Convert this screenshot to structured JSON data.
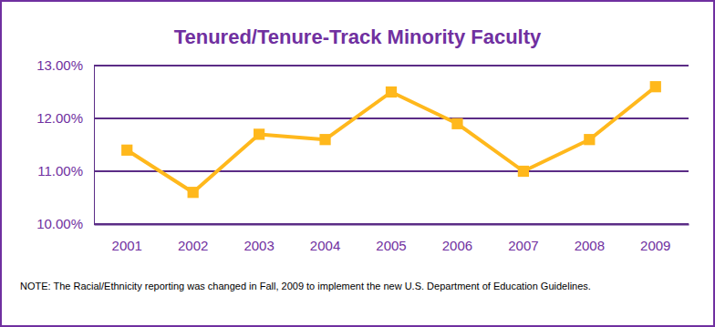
{
  "chart_data": {
    "type": "line",
    "title": "Tenured/Tenure-Track Minority Faculty",
    "categories": [
      "2001",
      "2002",
      "2003",
      "2004",
      "2005",
      "2006",
      "2007",
      "2008",
      "2009"
    ],
    "values": [
      11.4,
      10.6,
      11.7,
      11.6,
      12.5,
      11.9,
      11.0,
      11.6,
      12.6
    ],
    "color": "#ffb81c",
    "marker": "square",
    "ylim": [
      10,
      13
    ],
    "yticks": [
      {
        "value": 10,
        "label": "10.00%"
      },
      {
        "value": 11,
        "label": "11.00%"
      },
      {
        "value": 12,
        "label": "12.00%"
      },
      {
        "value": 13,
        "label": "13.00%"
      }
    ],
    "grid": true,
    "note": "NOTE: The Racial/Ethnicity reporting was changed in Fall, 2009 to implement the new U.S. Department of Education Guidelines."
  }
}
